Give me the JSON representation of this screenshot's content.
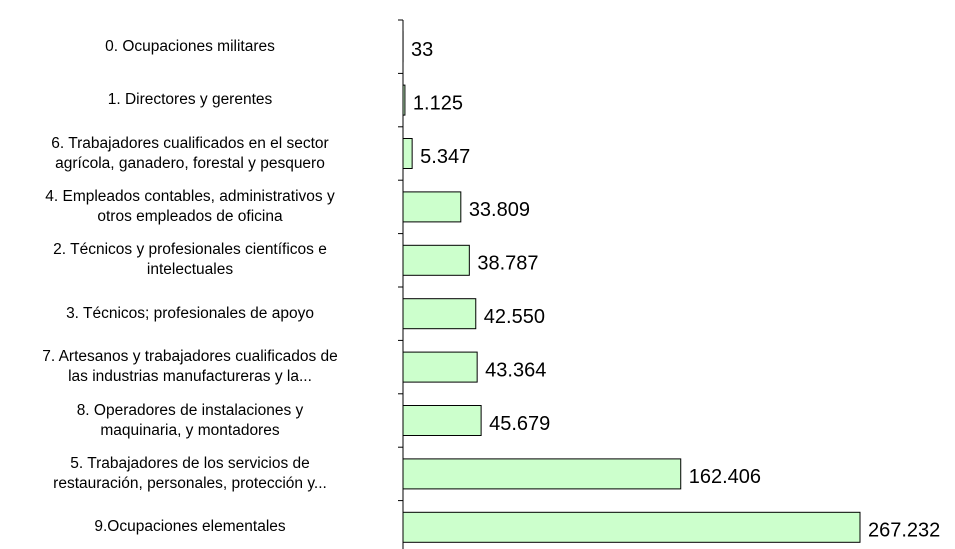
{
  "chart_data": {
    "type": "bar",
    "orientation": "horizontal",
    "categories": [
      "0. Ocupaciones militares",
      "1. Directores y gerentes",
      "6. Trabajadores cualificados en el sector\nagrícola, ganadero, forestal y pesquero",
      "4. Empleados contables, administrativos y\notros empleados de oficina",
      "2. Técnicos y profesionales científicos e\nintelectuales",
      "3. Técnicos; profesionales de apoyo",
      "7. Artesanos y trabajadores cualificados de\nlas industrias manufactureras y la...",
      "8. Operadores de instalaciones y\nmaquinaria, y montadores",
      "5. Trabajadores de los servicios de\nrestauración, personales, protección y...",
      "9.Ocupaciones elementales"
    ],
    "values": [
      33,
      1125,
      5347,
      33809,
      38787,
      42550,
      43364,
      45679,
      162406,
      267232
    ],
    "value_labels": [
      "33",
      "1.125",
      "5.347",
      "33.809",
      "38.787",
      "42.550",
      "43.364",
      "45.679",
      "162.406",
      "267.232"
    ],
    "color": "#ccffcc"
  }
}
